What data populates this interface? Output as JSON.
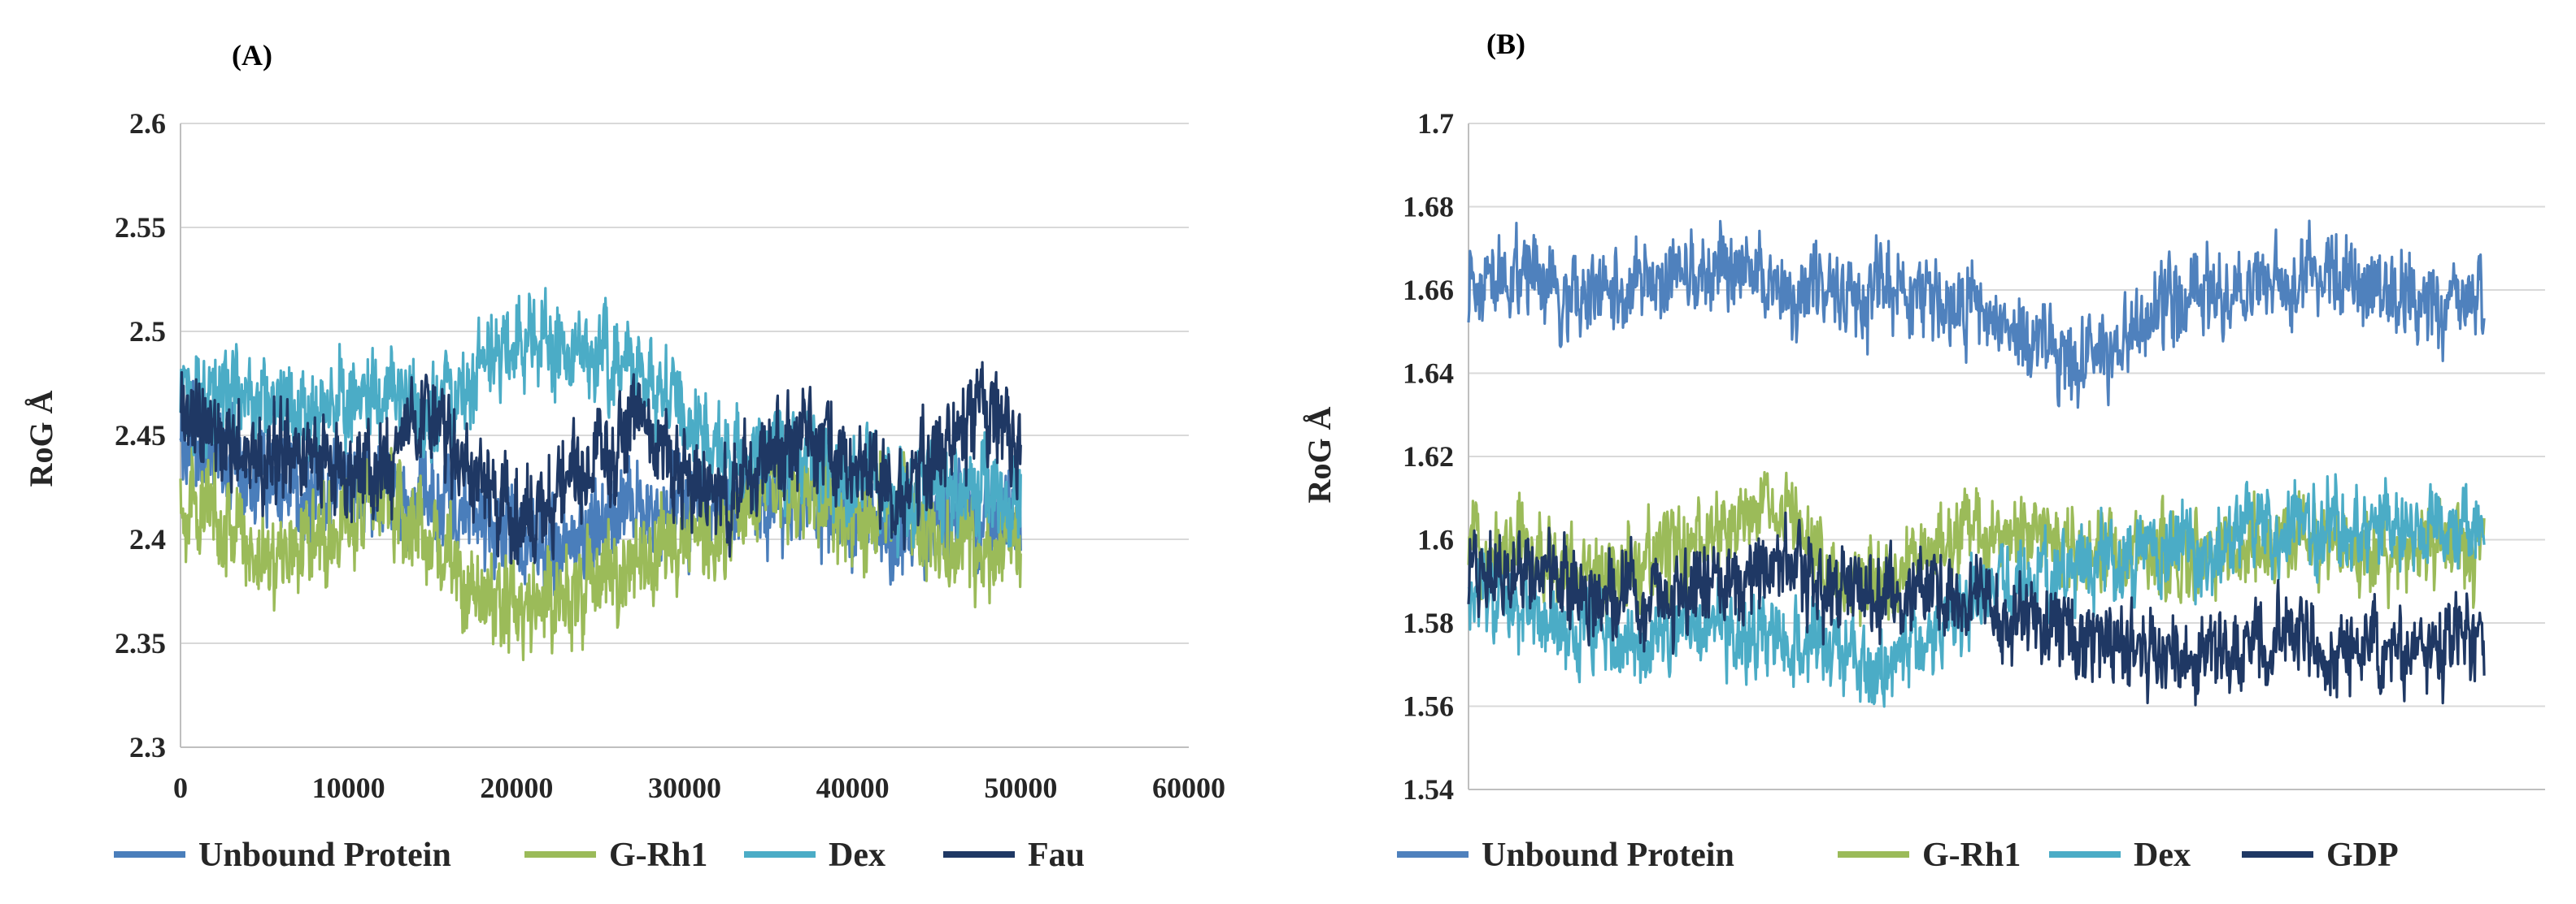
{
  "chart_data": [
    {
      "type": "line",
      "panel_label": "(A)",
      "ylabel": "RoG Å",
      "xlabel": "",
      "xlim": [
        0,
        60000
      ],
      "ylim": [
        2.3,
        2.6
      ],
      "x_ticks": [
        "0",
        "10000",
        "20000",
        "30000",
        "40000",
        "50000",
        "60000"
      ],
      "y_ticks": [
        "2.3",
        "2.35",
        "2.4",
        "2.45",
        "2.5",
        "2.55",
        "2.6"
      ],
      "grid": true,
      "legend_position": "bottom",
      "series": [
        {
          "name": "Unbound Protein",
          "color": "#4a7ebb",
          "x": [
            0,
            2500,
            5000,
            7500,
            10000,
            12500,
            15000,
            17500,
            20000,
            22500,
            25000,
            27500,
            30000,
            32500,
            35000,
            37500,
            40000,
            42500,
            45000,
            47500,
            50000
          ],
          "values": [
            2.45,
            2.44,
            2.43,
            2.42,
            2.43,
            2.42,
            2.42,
            2.41,
            2.4,
            2.39,
            2.41,
            2.42,
            2.41,
            2.42,
            2.42,
            2.41,
            2.41,
            2.4,
            2.41,
            2.41,
            2.41
          ]
        },
        {
          "name": "G-Rh1",
          "color": "#9bbb59",
          "x": [
            0,
            2500,
            5000,
            7500,
            10000,
            12500,
            15000,
            17500,
            20000,
            22500,
            25000,
            27500,
            30000,
            32500,
            35000,
            37500,
            40000,
            42500,
            45000,
            47500,
            50000
          ],
          "values": [
            2.42,
            2.41,
            2.39,
            2.4,
            2.41,
            2.42,
            2.4,
            2.37,
            2.37,
            2.37,
            2.38,
            2.39,
            2.4,
            2.4,
            2.43,
            2.42,
            2.41,
            2.42,
            2.4,
            2.4,
            2.4
          ]
        },
        {
          "name": "Dex",
          "color": "#4bacc6",
          "x": [
            0,
            2500,
            5000,
            7500,
            10000,
            12500,
            15000,
            17500,
            20000,
            22500,
            25000,
            27500,
            30000,
            32500,
            35000,
            37500,
            40000,
            42500,
            45000,
            47500,
            50000
          ],
          "values": [
            2.47,
            2.47,
            2.46,
            2.46,
            2.47,
            2.47,
            2.46,
            2.48,
            2.5,
            2.49,
            2.49,
            2.48,
            2.46,
            2.44,
            2.44,
            2.44,
            2.43,
            2.42,
            2.43,
            2.42,
            2.42
          ]
        },
        {
          "name": "Fau",
          "color": "#1f3864",
          "x": [
            0,
            2500,
            5000,
            7500,
            10000,
            12500,
            15000,
            17500,
            20000,
            22500,
            25000,
            27500,
            30000,
            32500,
            35000,
            37500,
            40000,
            42500,
            45000,
            47500,
            50000
          ],
          "values": [
            2.46,
            2.45,
            2.44,
            2.44,
            2.43,
            2.44,
            2.46,
            2.43,
            2.41,
            2.42,
            2.44,
            2.46,
            2.43,
            2.42,
            2.44,
            2.45,
            2.43,
            2.42,
            2.44,
            2.46,
            2.45
          ]
        }
      ]
    },
    {
      "type": "line",
      "panel_label": "(B)",
      "ylabel": "RoG Å",
      "xlabel": "",
      "xlim": [
        0,
        50000
      ],
      "ylim": [
        1.54,
        1.7
      ],
      "x_ticks": [],
      "y_ticks": [
        "1.54",
        "1.56",
        "1.58",
        "1.6",
        "1.62",
        "1.64",
        "1.66",
        "1.68",
        "1.7"
      ],
      "grid": true,
      "legend_position": "bottom",
      "series": [
        {
          "name": "Unbound Protein",
          "color": "#4f81bd",
          "x": [
            0,
            2500,
            5000,
            7500,
            10000,
            12500,
            15000,
            17500,
            20000,
            22500,
            25000,
            27500,
            30000,
            32500,
            35000,
            37500,
            40000,
            42500,
            45000,
            47500,
            50000
          ],
          "values": [
            1.663,
            1.665,
            1.657,
            1.659,
            1.662,
            1.667,
            1.66,
            1.657,
            1.661,
            1.658,
            1.655,
            1.648,
            1.642,
            1.65,
            1.656,
            1.658,
            1.662,
            1.663,
            1.661,
            1.656,
            1.657
          ]
        },
        {
          "name": "G-Rh1",
          "color": "#9bbb59",
          "x": [
            0,
            2500,
            5000,
            7500,
            10000,
            12500,
            15000,
            17500,
            20000,
            22500,
            25000,
            27500,
            30000,
            32500,
            35000,
            37500,
            40000,
            42500,
            45000,
            47500,
            50000
          ],
          "values": [
            1.6,
            1.6,
            1.592,
            1.59,
            1.598,
            1.6,
            1.61,
            1.596,
            1.588,
            1.596,
            1.602,
            1.602,
            1.598,
            1.596,
            1.596,
            1.598,
            1.6,
            1.598,
            1.596,
            1.598,
            1.598
          ]
        },
        {
          "name": "Dex",
          "color": "#4bacc6",
          "x": [
            0,
            2500,
            5000,
            7500,
            10000,
            12500,
            15000,
            17500,
            20000,
            22500,
            25000,
            27500,
            30000,
            32500,
            35000,
            37500,
            40000,
            42500,
            45000,
            47500,
            50000
          ],
          "values": [
            1.59,
            1.582,
            1.578,
            1.576,
            1.575,
            1.58,
            1.577,
            1.575,
            1.568,
            1.576,
            1.585,
            1.592,
            1.594,
            1.596,
            1.598,
            1.6,
            1.603,
            1.604,
            1.603,
            1.602,
            1.6
          ]
        },
        {
          "name": "GDP",
          "color": "#1f3864",
          "x": [
            0,
            2500,
            5000,
            7500,
            10000,
            12500,
            15000,
            17500,
            20000,
            22500,
            25000,
            27500,
            30000,
            32500,
            35000,
            37500,
            40000,
            42500,
            45000,
            47500,
            50000
          ],
          "values": [
            1.594,
            1.592,
            1.588,
            1.587,
            1.586,
            1.589,
            1.594,
            1.589,
            1.586,
            1.59,
            1.582,
            1.58,
            1.577,
            1.574,
            1.572,
            1.574,
            1.578,
            1.574,
            1.572,
            1.574,
            1.577
          ]
        }
      ]
    }
  ]
}
